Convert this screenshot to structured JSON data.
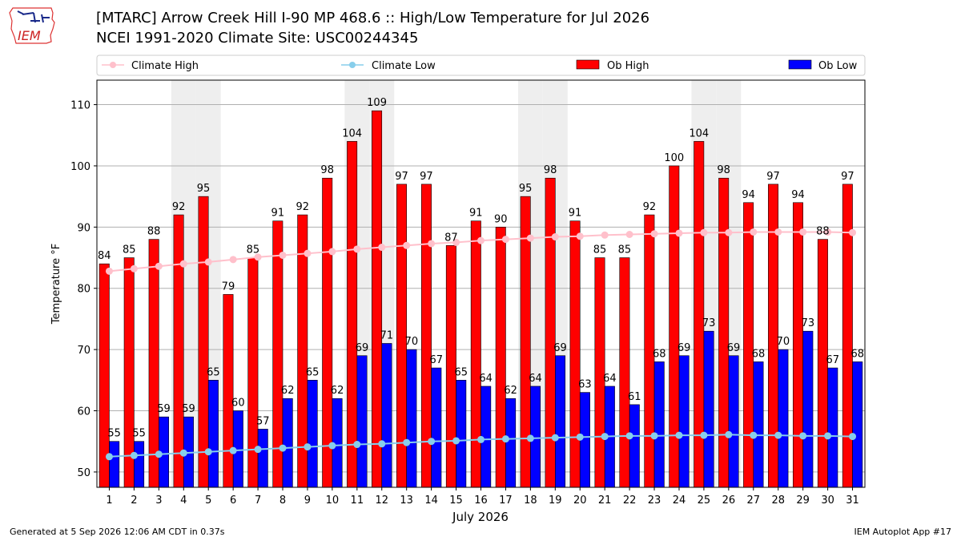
{
  "header": {
    "logo_text": "IEM",
    "title_line1": "[MTARC] Arrow Creek Hill I-90 MP 468.6  :: High/Low Temperature for Jul 2026",
    "title_line2": "NCEI 1991-2020 Climate Site: USC00244345"
  },
  "footer": {
    "generated": "Generated at 5 Sep 2026 12:06 AM CDT in 0.37s",
    "app": "IEM Autoplot App #17"
  },
  "colors": {
    "ob_high": "#ff0000",
    "ob_low": "#0000ff",
    "climate_high": "#ffc0cb",
    "climate_low": "#87ceeb",
    "weekend_band": "#eeeeee"
  },
  "chart_data": {
    "type": "bar",
    "xlabel": "July 2026",
    "ylabel": "Temperature °F",
    "ylim": [
      47.5,
      114
    ],
    "yticks": [
      50,
      60,
      70,
      80,
      90,
      100,
      110
    ],
    "grid": true,
    "legend_position": "top",
    "categories": [
      "1",
      "2",
      "3",
      "4",
      "5",
      "6",
      "7",
      "8",
      "9",
      "10",
      "11",
      "12",
      "13",
      "14",
      "15",
      "16",
      "17",
      "18",
      "19",
      "20",
      "21",
      "22",
      "23",
      "24",
      "25",
      "26",
      "27",
      "28",
      "29",
      "30",
      "31"
    ],
    "shaded_days": [
      4,
      5,
      11,
      12,
      18,
      19,
      25,
      26
    ],
    "series": [
      {
        "name": "Ob High",
        "kind": "bar",
        "values": [
          84,
          85,
          88,
          92,
          95,
          79,
          85,
          91,
          92,
          98,
          104,
          109,
          97,
          97,
          87,
          91,
          90,
          95,
          98,
          91,
          85,
          85,
          92,
          100,
          104,
          98,
          94,
          97,
          94,
          88,
          97
        ]
      },
      {
        "name": "Ob Low",
        "kind": "bar",
        "values": [
          55,
          55,
          59,
          59,
          65,
          60,
          57,
          62,
          65,
          62,
          69,
          71,
          70,
          67,
          65,
          64,
          62,
          64,
          69,
          63,
          64,
          61,
          68,
          69,
          73,
          69,
          68,
          70,
          73,
          67,
          68
        ]
      },
      {
        "name": "Climate High",
        "kind": "line",
        "values": [
          82.8,
          83.2,
          83.6,
          84.0,
          84.3,
          84.7,
          85.1,
          85.4,
          85.7,
          86.0,
          86.4,
          86.7,
          87.0,
          87.3,
          87.5,
          87.8,
          88.0,
          88.2,
          88.4,
          88.5,
          88.7,
          88.8,
          88.9,
          89.0,
          89.1,
          89.1,
          89.2,
          89.2,
          89.2,
          89.2,
          89.1
        ]
      },
      {
        "name": "Climate Low",
        "kind": "line",
        "values": [
          52.5,
          52.7,
          52.9,
          53.1,
          53.3,
          53.5,
          53.7,
          53.9,
          54.1,
          54.3,
          54.5,
          54.6,
          54.8,
          55.0,
          55.1,
          55.3,
          55.4,
          55.5,
          55.6,
          55.7,
          55.8,
          55.9,
          55.9,
          56.0,
          56.0,
          56.1,
          56.0,
          56.0,
          55.9,
          55.9,
          55.8
        ]
      }
    ]
  }
}
